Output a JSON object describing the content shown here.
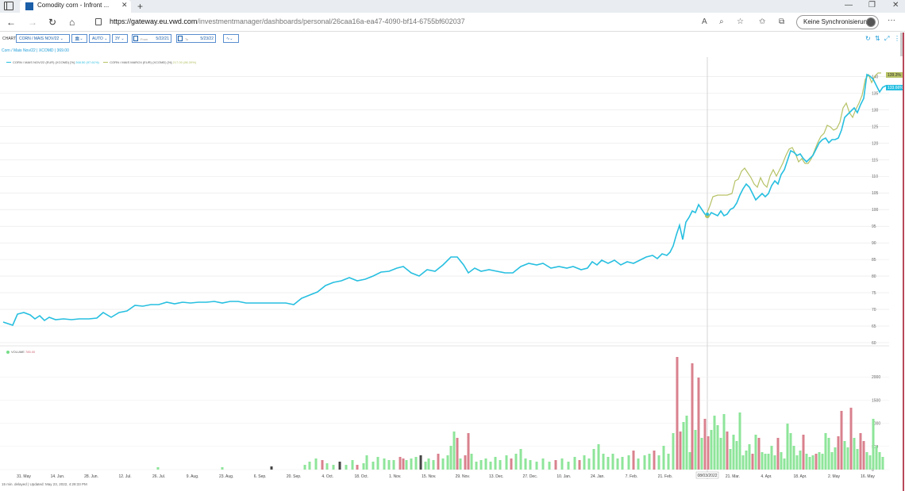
{
  "browser": {
    "tab_title": "Comodity corn - Infront ...",
    "url_host": "https://gateway.eu.vwd.com",
    "url_path": "/investmentmanager/dashboards/personal/26caa16a-ea47-4090-bf14-6755bf602037",
    "sync_label": "Keine Synchronisierung"
  },
  "toolbar": {
    "label": "CHART",
    "instrument": "CORN / MAIS NOV/22",
    "mode": "AUTO",
    "period": "3Y",
    "from_label": "From",
    "from_value": "5/22/21",
    "to_label": "To",
    "to_value": "5/23/22"
  },
  "subheader": "Corn / Mais Nov/22 | XCOMD | 369.00",
  "chart_data": {
    "type": "line",
    "series": [
      {
        "name": "CORN / MAIS NOV/22 (EUR) (XCOMD) [%]",
        "value_label": "268.50 (97.61%)",
        "end_label": "133.66%",
        "color": "#27bfe0"
      },
      {
        "name": "CORN / MAIS MAR/24 (EUR) (XCOMD) [%]",
        "value_label": "217.00 (86.39%)",
        "end_label": "139.3%",
        "color": "#b7c266"
      }
    ],
    "yticks": [
      "140",
      "135",
      "130",
      "125",
      "120",
      "115",
      "110",
      "105",
      "100",
      "95",
      "90",
      "85",
      "80",
      "75",
      "70",
      "65",
      "60"
    ],
    "xticks": [
      "31. May",
      "14. Jun.",
      "28. Jun.",
      "12. Jul.",
      "26. Jul.",
      "9. Aug.",
      "23. Aug.",
      "6. Sep.",
      "20. Sep.",
      "4. Oct.",
      "18. Oct.",
      "1. Nov.",
      "15. Nov.",
      "29. Nov.",
      "13. Dec.",
      "27. Dec.",
      "10. Jan.",
      "24. Jan.",
      "7. Feb.",
      "21. Feb.",
      "7.",
      "21. Mar.",
      "4. Apr.",
      "18. Apr.",
      "2. May",
      "16. May"
    ],
    "ylim": [
      60,
      142
    ],
    "grid": true,
    "cursor_label": "08/03/2022",
    "volume": {
      "label": "VOLUME",
      "value_label": "785.00",
      "yticks": [
        "2000",
        "1500",
        "1000",
        "500",
        "0"
      ],
      "ylim": [
        0,
        2500
      ]
    }
  },
  "status": "15 min. delayed | Updated: May 23, 2022, 4:28:33 PM"
}
